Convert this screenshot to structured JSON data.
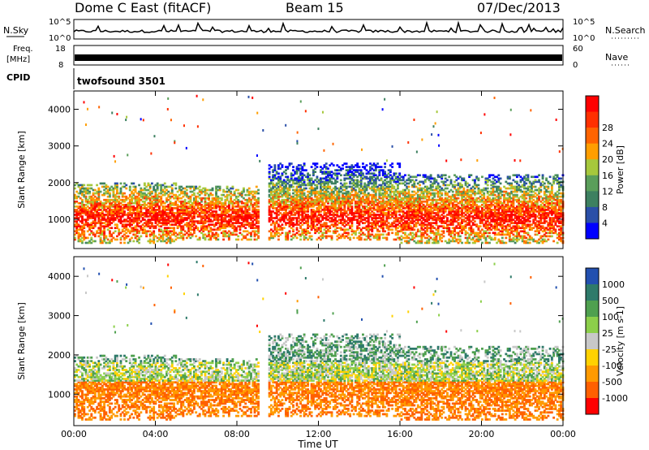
{
  "header": {
    "station": "Dome C East (fitACF)",
    "beam": "Beam 15",
    "date": "07/Dec/2013"
  },
  "top_panels": {
    "nsky_label": "N.Sky",
    "nsky_ticks": [
      "10^5",
      "10^0"
    ],
    "nsearch_label": "N.Search",
    "nsearch_ticks": [
      "10^5",
      "10^0"
    ],
    "freq_label": "Freq.",
    "freq_unit": "[MHz]",
    "freq_ticks": [
      "18",
      "8"
    ],
    "nave_label": "Nave",
    "nave_ticks": [
      "60",
      "0"
    ],
    "cpid_label": "CPID",
    "cpid_value": "twofsound 3501"
  },
  "chart_data": [
    {
      "type": "heatmap",
      "panel": "power",
      "ylabel": "Slant Range [km]",
      "yticks": [
        "1000",
        "2000",
        "3000",
        "4000"
      ],
      "ylim": [
        200,
        4500
      ],
      "xlim": [
        0,
        24
      ],
      "colorbar_label": "Power [dB]",
      "colorbar_ticks": [
        "4",
        "8",
        "12",
        "16",
        "20",
        "24",
        "28"
      ],
      "colorbar_colors": [
        "#0000ff",
        "#2a4fa8",
        "#3d8060",
        "#5a9e5a",
        "#a6c83c",
        "#ff9e00",
        "#ff6400",
        "#ff3000",
        "#ff0000"
      ],
      "scatter_echo_bands": [
        {
          "t_start": 0,
          "t_end": 5,
          "r_min": 300,
          "r_max": 2000
        },
        {
          "t_start": 5,
          "t_end": 9,
          "r_min": 400,
          "r_max": 1900
        },
        {
          "t_start": 9.5,
          "t_end": 16,
          "r_min": 400,
          "r_max": 2500
        },
        {
          "t_start": 16,
          "t_end": 24,
          "r_min": 300,
          "r_max": 2200
        }
      ]
    },
    {
      "type": "heatmap",
      "panel": "velocity",
      "ylabel": "Slant Range [km]",
      "yticks": [
        "1000",
        "2000",
        "3000",
        "4000"
      ],
      "ylim": [
        200,
        4500
      ],
      "xlim": [
        0,
        24
      ],
      "xticks": [
        "00:00",
        "04:00",
        "08:00",
        "12:00",
        "16:00",
        "20:00",
        "00:00"
      ],
      "xlabel": "Time UT",
      "colorbar_label": "Velocity [m s-1]",
      "colorbar_ticks": [
        "1000",
        "500",
        "100",
        "25",
        "-25",
        "-100",
        "-500",
        "-1000"
      ],
      "colorbar_colors": [
        "#2250b0",
        "#2e7a6a",
        "#4fa04f",
        "#8ccf4a",
        "#c8c8c8",
        "#ffd200",
        "#ff9a00",
        "#ff6000",
        "#ff0000"
      ]
    }
  ]
}
